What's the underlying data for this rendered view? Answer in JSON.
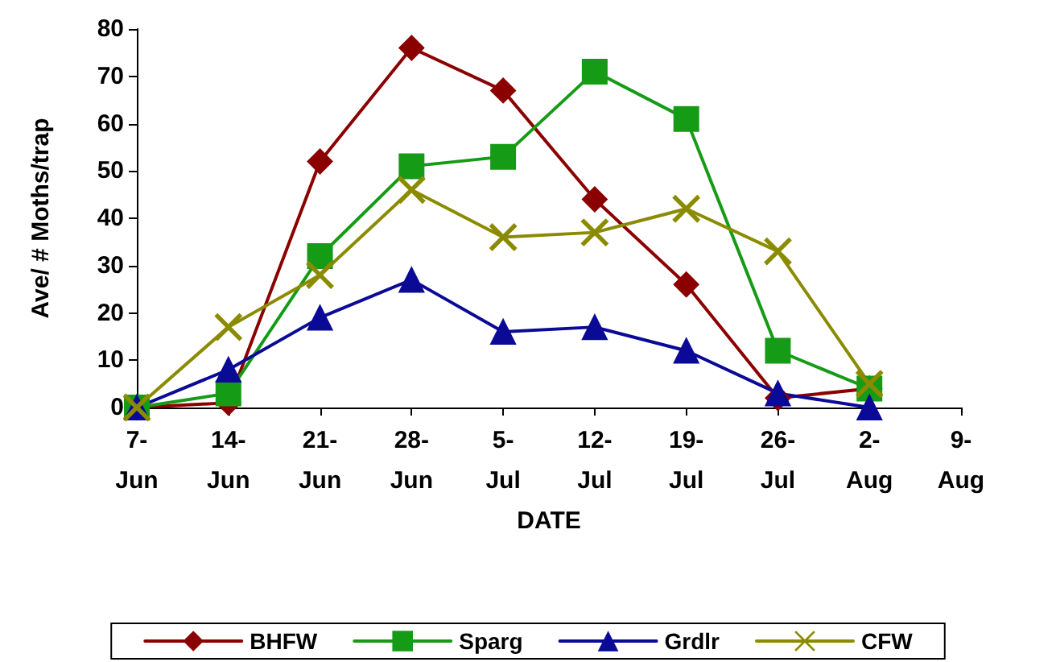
{
  "chart_data": {
    "type": "line",
    "xlabel": "DATE",
    "ylabel": "Ave/ # Moths/trap",
    "categories": [
      "7-Jun",
      "14-Jun",
      "21-Jun",
      "28-Jun",
      "5-Jul",
      "12-Jul",
      "19-Jul",
      "26-Jul",
      "2-Aug",
      "9-Aug"
    ],
    "series": [
      {
        "name": "BHFW",
        "color": "#8b0000",
        "marker": "diamond",
        "values": [
          0,
          1,
          52,
          76,
          67,
          44,
          26,
          2,
          4,
          null
        ]
      },
      {
        "name": "Sparg",
        "color": "#169b16",
        "marker": "square",
        "values": [
          0,
          3,
          32,
          51,
          53,
          71,
          61,
          12,
          4,
          null
        ]
      },
      {
        "name": "Grdlr",
        "color": "#0a0a96",
        "marker": "triangle",
        "values": [
          0,
          8,
          19,
          27,
          16,
          17,
          12,
          3,
          0,
          null
        ]
      },
      {
        "name": "CFW",
        "color": "#8b8b00",
        "marker": "cross",
        "values": [
          0,
          17,
          28,
          46,
          36,
          37,
          42,
          33,
          5,
          null
        ]
      }
    ],
    "ylim": [
      0,
      80
    ],
    "yticks": [
      0,
      10,
      20,
      30,
      40,
      50,
      60,
      70,
      80
    ],
    "grid": false,
    "legend": "bottom",
    "line_style": "solid"
  }
}
